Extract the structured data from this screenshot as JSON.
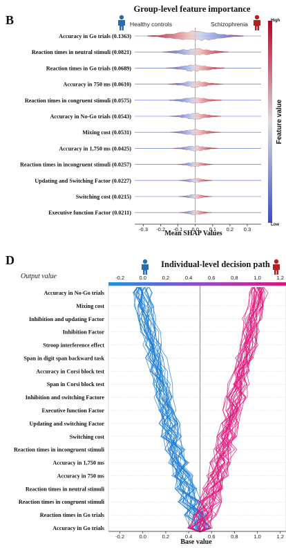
{
  "chart_data": [
    {
      "panel": "B",
      "type": "violin",
      "title": "Group-level feature importance",
      "group_left": "Healthy  controls",
      "group_right": "Schizophrenia",
      "xlabel": "Mean SHAP Values",
      "xlim": [
        -0.35,
        0.38
      ],
      "xticks": [
        -0.3,
        -0.2,
        -0.1,
        0.0,
        0.1,
        0.2,
        0.3
      ],
      "colorbar": {
        "label": "Feature value",
        "high": "High",
        "low": "Low",
        "high_color": "#b40426",
        "low_color": "#3b4cc0"
      },
      "features": [
        {
          "label": "Accuracy in Go trials (0.1363)",
          "importance": 0.1363
        },
        {
          "label": "Reaction times in neutral stimuli (0.0821)",
          "importance": 0.0821
        },
        {
          "label": "Reaction times in Go trials (0.0689)",
          "importance": 0.0689
        },
        {
          "label": "Accuracy in 750 ms (0.0610)",
          "importance": 0.061
        },
        {
          "label": "Reaction times in congruent stimuli (0.0575)",
          "importance": 0.0575
        },
        {
          "label": "Accuracy in No-Go trials (0.0543)",
          "importance": 0.0543
        },
        {
          "label": "Mixing cost (0.0531)",
          "importance": 0.0531
        },
        {
          "label": "Accuracy in 1,750 ms (0.0425)",
          "importance": 0.0425
        },
        {
          "label": "Reaction times in incongruent stimuli (0.0257)",
          "importance": 0.0257
        },
        {
          "label": "Updating and Switching Factor (0.0227)",
          "importance": 0.0227
        },
        {
          "label": "Switching cost (0.0215)",
          "importance": 0.0215
        },
        {
          "label": "Executive function Factor (0.0211)",
          "importance": 0.0211
        }
      ]
    },
    {
      "panel": "D",
      "type": "line",
      "title": "Individual-level decision path",
      "top_label": "Output value",
      "xlabel": "Base value",
      "base_value": 0.5,
      "xlim": [
        -0.3,
        1.25
      ],
      "xticks": [
        -0.2,
        0.0,
        0.2,
        0.4,
        0.6,
        0.8,
        1.0,
        1.2
      ],
      "features": [
        "Accuracy in No-Go trials",
        "Mixing cost",
        "Inhibition and updating Factor",
        "Inhibition Factor",
        "Stroop interference effect",
        "Span in digit span backward task",
        "Accuracy in Corsi block test",
        "Span in Corsi block test",
        "Inhibition and switching Factore",
        "Executive function Factor",
        "Updating and switching Factor",
        "Switching cost",
        "Reaction times in incongruent stimuli",
        "Accuracy in 1,750 ms",
        "Accuracy in 750 ms",
        "Reaction times in neutral stimuli",
        "Reaction times in congruent stimuli",
        "Reaction times in Go trials",
        "Accuracy in Go trials"
      ],
      "series": [
        {
          "color": "#1f7fd6",
          "final_output": 0.0
        },
        {
          "color": "#e0167a",
          "final_output": 1.0
        }
      ]
    }
  ]
}
